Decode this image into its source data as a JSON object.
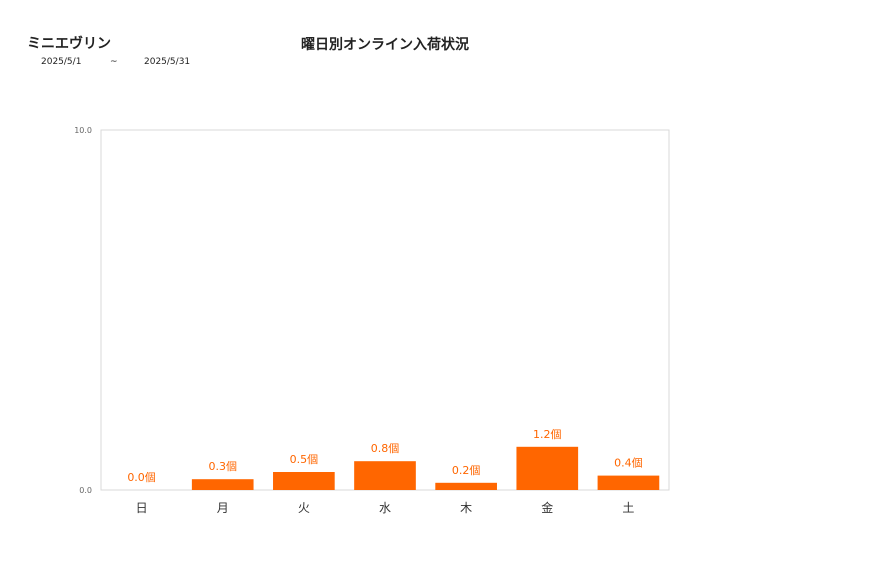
{
  "header": {
    "product_name": "ミニエヴリン",
    "date_from": "2025/5/1",
    "date_separator": "~",
    "date_to": "2025/5/31"
  },
  "colors": {
    "bar": "#ff6600",
    "label": "#ff6600",
    "frame": "#d9d9d9"
  },
  "chart_data": {
    "type": "bar",
    "title": "曜日別オンライン入荷状況",
    "categories": [
      "日",
      "月",
      "火",
      "水",
      "木",
      "金",
      "土"
    ],
    "values": [
      0.0,
      0.3,
      0.5,
      0.8,
      0.2,
      1.2,
      0.4
    ],
    "data_labels": [
      "0.0個",
      "0.3個",
      "0.5個",
      "0.8個",
      "0.2個",
      "1.2個",
      "0.4個"
    ],
    "y_ticks": [
      "0.0",
      "10.0"
    ],
    "ylim": [
      0,
      10
    ],
    "grid": false,
    "legend": "none"
  }
}
